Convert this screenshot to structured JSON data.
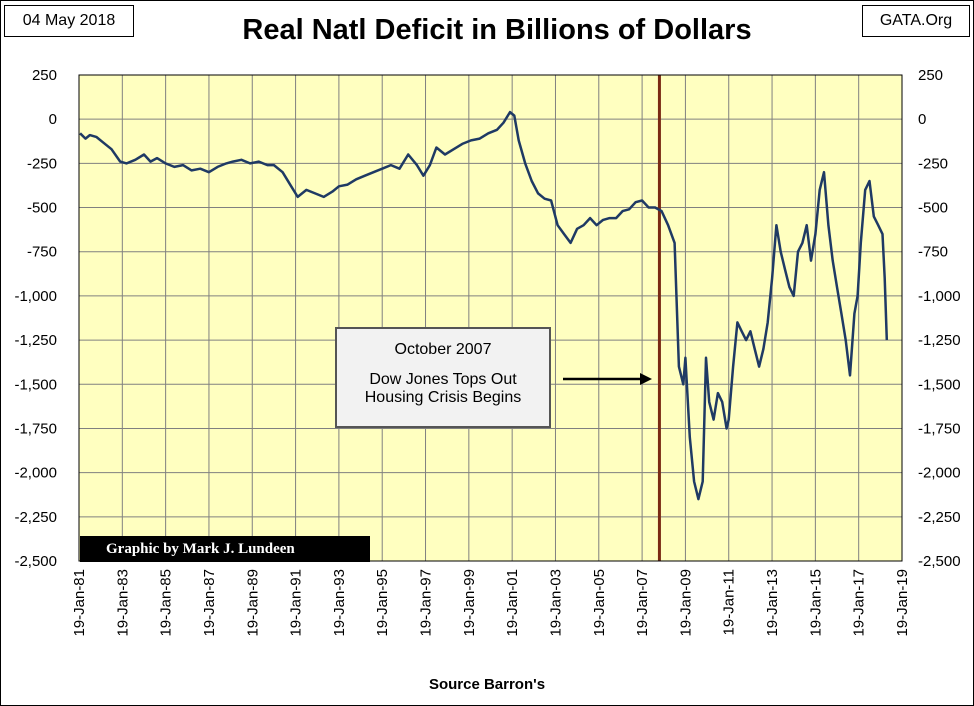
{
  "header": {
    "date": "04 May 2018",
    "source_site": "GATA.Org",
    "title": "Real Natl Deficit in Billions of Dollars"
  },
  "footer": {
    "xlabel": "Source Barron's",
    "credit": "Graphic by Mark J. Lundeen"
  },
  "annotation": {
    "line1": "October 2007",
    "line2": "Dow Jones Tops Out",
    "line3": "Housing Crisis Begins"
  },
  "colors": {
    "plot_background": "#ffffc0",
    "series_line": "#1f3a64",
    "marker_line": "#7a2a14",
    "grid": "#808080"
  },
  "chart_data": {
    "type": "line",
    "title": "Real Natl Deficit in Billions of Dollars",
    "xlabel": "Source Barron's",
    "ylabel": "",
    "ylim": [
      -2500,
      250
    ],
    "xlim": [
      "1981-01-19",
      "2019-01-19"
    ],
    "grid": true,
    "y_ticks": [
      250,
      0,
      -250,
      -500,
      -750,
      -1000,
      -1250,
      -1500,
      -1750,
      -2000,
      -2250,
      -2500
    ],
    "y_tick_labels": [
      "250",
      "0",
      "-250",
      "-500",
      "-750",
      "-1,000",
      "-1,250",
      "-1,500",
      "-1,750",
      "-2,000",
      "-2,250",
      "-2,500"
    ],
    "x_ticks": [
      "19-Jan-81",
      "19-Jan-83",
      "19-Jan-85",
      "19-Jan-87",
      "19-Jan-89",
      "19-Jan-91",
      "19-Jan-93",
      "19-Jan-95",
      "19-Jan-97",
      "19-Jan-99",
      "19-Jan-01",
      "19-Jan-03",
      "19-Jan-05",
      "19-Jan-07",
      "19-Jan-09",
      "19-Jan-11",
      "19-Jan-13",
      "19-Jan-15",
      "19-Jan-17",
      "19-Jan-19"
    ],
    "x_tick_years": [
      1981,
      1983,
      1985,
      1987,
      1989,
      1991,
      1993,
      1995,
      1997,
      1999,
      2001,
      2003,
      2005,
      2007,
      2009,
      2011,
      2013,
      2015,
      2017,
      2019
    ],
    "marker_year": 2007.8,
    "series": [
      {
        "x": [
          1981.05,
          1981.3,
          1981.5,
          1981.8,
          1982.1,
          1982.5,
          1982.9,
          1983.2,
          1983.6,
          1984.0,
          1984.3,
          1984.6,
          1985.0,
          1985.4,
          1985.8,
          1986.2,
          1986.6,
          1987.0,
          1987.4,
          1987.8,
          1988.1,
          1988.5,
          1988.9,
          1989.3,
          1989.7,
          1990.0,
          1990.4,
          1990.8,
          1991.1,
          1991.5,
          1991.9,
          1992.3,
          1992.7,
          1993.0,
          1993.4,
          1993.8,
          1994.2,
          1994.6,
          1995.0,
          1995.4,
          1995.8,
          1996.2,
          1996.6,
          1996.9,
          1997.2,
          1997.5,
          1997.9,
          1998.3,
          1998.7,
          1999.1,
          1999.5,
          1999.9,
          2000.3,
          2000.6,
          2000.9,
          2001.1,
          2001.3,
          2001.6,
          2001.9,
          2002.2,
          2002.5,
          2002.8,
          2003.1,
          2003.4,
          2003.7,
          2004.0,
          2004.3,
          2004.6,
          2004.9,
          2005.2,
          2005.5,
          2005.8,
          2006.1,
          2006.4,
          2006.7,
          2007.0,
          2007.3,
          2007.6,
          2007.9,
          2008.2,
          2008.5,
          2008.7,
          2008.9,
          2009.0,
          2009.2,
          2009.4,
          2009.6,
          2009.8,
          2009.95,
          2010.1,
          2010.3,
          2010.5,
          2010.7,
          2010.9,
          2011.0,
          2011.2,
          2011.4,
          2011.6,
          2011.8,
          2012.0,
          2012.2,
          2012.4,
          2012.6,
          2012.8,
          2013.0,
          2013.2,
          2013.4,
          2013.6,
          2013.8,
          2014.0,
          2014.2,
          2014.4,
          2014.6,
          2014.8,
          2015.0,
          2015.2,
          2015.4,
          2015.6,
          2015.8,
          2016.0,
          2016.2,
          2016.4,
          2016.6,
          2016.8,
          2016.95,
          2017.1,
          2017.3,
          2017.5,
          2017.7,
          2017.9,
          2018.1,
          2018.2,
          2018.3
        ],
        "values": [
          -80,
          -110,
          -90,
          -100,
          -130,
          -170,
          -240,
          -250,
          -230,
          -200,
          -240,
          -220,
          -250,
          -270,
          -260,
          -290,
          -280,
          -300,
          -270,
          -250,
          -240,
          -230,
          -250,
          -240,
          -260,
          -260,
          -300,
          -380,
          -440,
          -400,
          -420,
          -440,
          -410,
          -380,
          -370,
          -340,
          -320,
          -300,
          -280,
          -260,
          -280,
          -200,
          -260,
          -320,
          -260,
          -160,
          -200,
          -170,
          -140,
          -120,
          -110,
          -80,
          -60,
          -20,
          40,
          20,
          -120,
          -250,
          -350,
          -420,
          -450,
          -460,
          -600,
          -650,
          -700,
          -620,
          -600,
          -560,
          -600,
          -570,
          -560,
          -560,
          -520,
          -510,
          -470,
          -460,
          -500,
          -500,
          -520,
          -600,
          -700,
          -1400,
          -1500,
          -1350,
          -1800,
          -2050,
          -2150,
          -2050,
          -1350,
          -1600,
          -1700,
          -1550,
          -1600,
          -1750,
          -1700,
          -1400,
          -1150,
          -1200,
          -1250,
          -1200,
          -1300,
          -1400,
          -1300,
          -1150,
          -900,
          -600,
          -750,
          -850,
          -950,
          -1000,
          -750,
          -700,
          -600,
          -800,
          -650,
          -400,
          -300,
          -600,
          -800,
          -950,
          -1100,
          -1250,
          -1450,
          -1100,
          -1000,
          -700,
          -400,
          -350,
          -550,
          -600,
          -650,
          -900,
          -1250
        ]
      }
    ]
  }
}
